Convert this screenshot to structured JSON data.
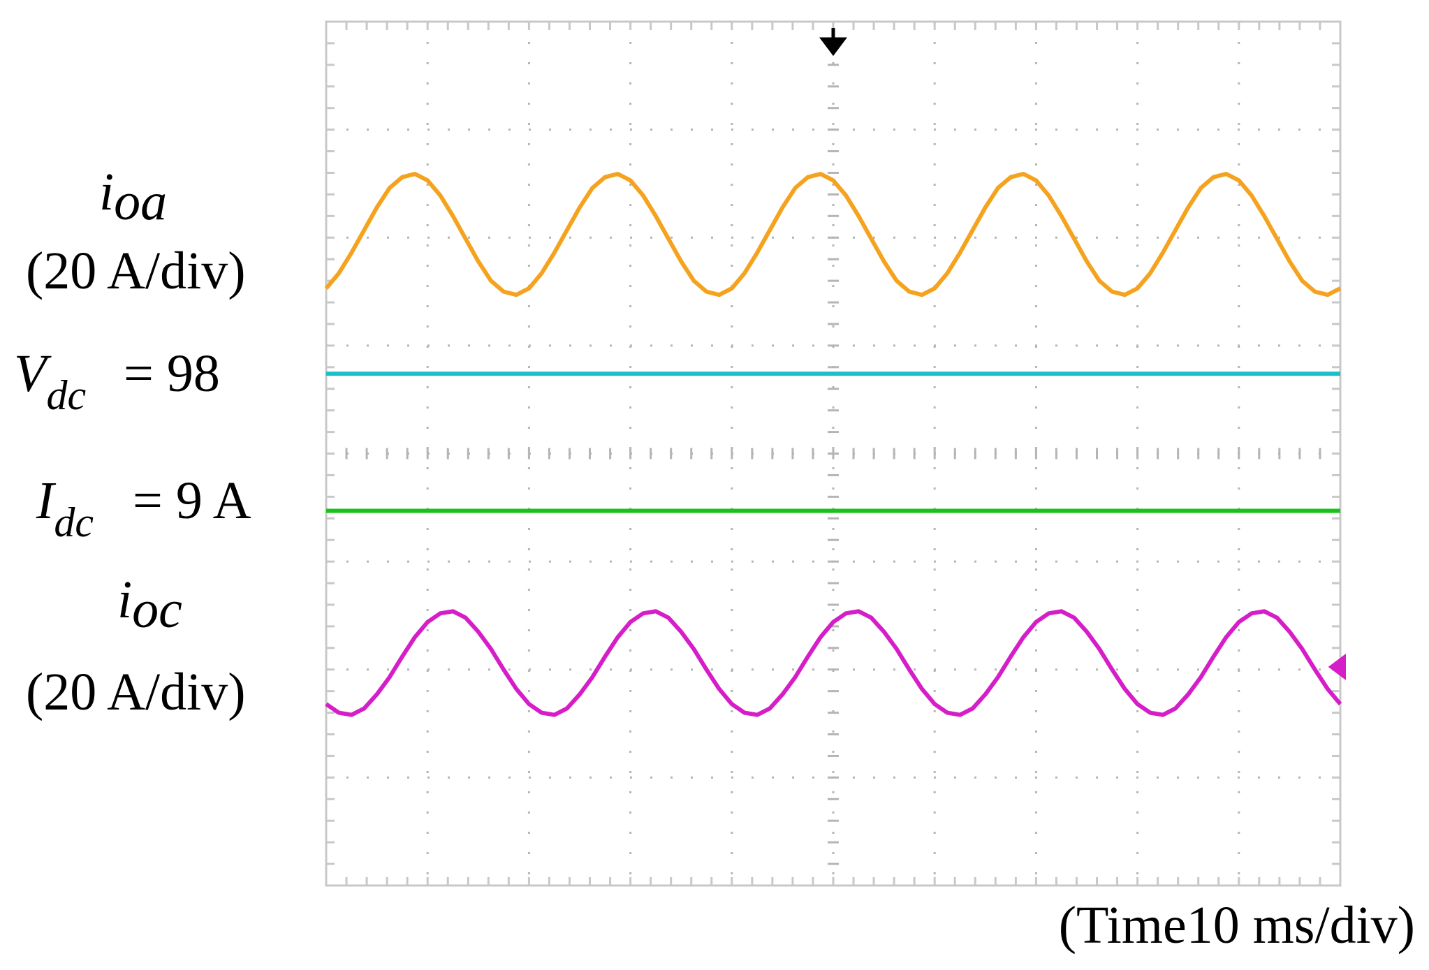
{
  "chart_data": {
    "type": "line",
    "xlabel": "(Time10 ms/div)",
    "annotations": [
      {
        "symbol": "i",
        "subscript": "oa",
        "text": "(20 A/div)"
      },
      {
        "symbol": "V",
        "subscript": "dc",
        "text": "= 98"
      },
      {
        "symbol": "I",
        "subscript": "dc",
        "text": "= 9 A"
      },
      {
        "symbol": "i",
        "subscript": "oc",
        "text": "(20 A/div)"
      }
    ],
    "xlim": [
      0,
      10
    ],
    "ylim": [
      -4,
      4
    ],
    "grid": true,
    "x": [
      0,
      0.125,
      0.25,
      0.375,
      0.5,
      0.625,
      0.75,
      0.875,
      1,
      1.125,
      1.25,
      1.375,
      1.5,
      1.625,
      1.75,
      1.875,
      2,
      2.125,
      2.25,
      2.375,
      2.5,
      2.625,
      2.75,
      2.875,
      3,
      3.125,
      3.25,
      3.375,
      3.5,
      3.625,
      3.75,
      3.875,
      4,
      4.125,
      4.25,
      4.375,
      4.5,
      4.625,
      4.75,
      4.875,
      5,
      5.125,
      5.25,
      5.375,
      5.5,
      5.625,
      5.75,
      5.875,
      6,
      6.125,
      6.25,
      6.375,
      6.5,
      6.625,
      6.75,
      6.875,
      7,
      7.125,
      7.25,
      7.375,
      7.5,
      7.625,
      7.75,
      7.875,
      8,
      8.125,
      8.25,
      8.375,
      8.5,
      8.625,
      8.75,
      8.875,
      9,
      9.125,
      9.25,
      9.375,
      9.5,
      9.625,
      9.75,
      9.875,
      10
    ],
    "series": [
      {
        "color": "#f5a31f",
        "values": [
          1.53,
          1.67,
          1.86,
          2.07,
          2.28,
          2.46,
          2.56,
          2.59,
          2.53,
          2.39,
          2.2,
          1.99,
          1.78,
          1.6,
          1.5,
          1.47,
          1.53,
          1.67,
          1.86,
          2.07,
          2.28,
          2.46,
          2.56,
          2.59,
          2.53,
          2.39,
          2.2,
          1.99,
          1.78,
          1.6,
          1.5,
          1.47,
          1.53,
          1.67,
          1.86,
          2.07,
          2.28,
          2.46,
          2.56,
          2.59,
          2.53,
          2.39,
          2.2,
          1.99,
          1.78,
          1.6,
          1.5,
          1.47,
          1.53,
          1.67,
          1.86,
          2.07,
          2.28,
          2.46,
          2.56,
          2.59,
          2.53,
          2.39,
          2.2,
          1.99,
          1.78,
          1.6,
          1.5,
          1.47,
          1.53,
          1.67,
          1.86,
          2.07,
          2.28,
          2.46,
          2.56,
          2.59,
          2.53,
          2.39,
          2.2,
          1.99,
          1.78,
          1.6,
          1.5,
          1.47,
          1.53
        ]
      },
      {
        "color": "#1bbfc9",
        "values": [
          0.74,
          0.74,
          0.74,
          0.74,
          0.74,
          0.74,
          0.74,
          0.74,
          0.74,
          0.74,
          0.74,
          0.74,
          0.74,
          0.74,
          0.74,
          0.74,
          0.74,
          0.74,
          0.74,
          0.74,
          0.74,
          0.74,
          0.74,
          0.74,
          0.74,
          0.74,
          0.74,
          0.74,
          0.74,
          0.74,
          0.74,
          0.74,
          0.74,
          0.74,
          0.74,
          0.74,
          0.74,
          0.74,
          0.74,
          0.74,
          0.74,
          0.74,
          0.74,
          0.74,
          0.74,
          0.74,
          0.74,
          0.74,
          0.74,
          0.74,
          0.74,
          0.74,
          0.74,
          0.74,
          0.74,
          0.74,
          0.74,
          0.74,
          0.74,
          0.74,
          0.74,
          0.74,
          0.74,
          0.74,
          0.74,
          0.74,
          0.74,
          0.74,
          0.74,
          0.74,
          0.74,
          0.74,
          0.74,
          0.74,
          0.74,
          0.74,
          0.74,
          0.74,
          0.74,
          0.74,
          0.74
        ]
      },
      {
        "color": "#19c21b",
        "values": [
          -0.53,
          -0.53,
          -0.53,
          -0.53,
          -0.53,
          -0.53,
          -0.53,
          -0.53,
          -0.53,
          -0.53,
          -0.53,
          -0.53,
          -0.53,
          -0.53,
          -0.53,
          -0.53,
          -0.53,
          -0.53,
          -0.53,
          -0.53,
          -0.53,
          -0.53,
          -0.53,
          -0.53,
          -0.53,
          -0.53,
          -0.53,
          -0.53,
          -0.53,
          -0.53,
          -0.53,
          -0.53,
          -0.53,
          -0.53,
          -0.53,
          -0.53,
          -0.53,
          -0.53,
          -0.53,
          -0.53,
          -0.53,
          -0.53,
          -0.53,
          -0.53,
          -0.53,
          -0.53,
          -0.53,
          -0.53,
          -0.53,
          -0.53,
          -0.53,
          -0.53,
          -0.53,
          -0.53,
          -0.53,
          -0.53,
          -0.53,
          -0.53,
          -0.53,
          -0.53,
          -0.53,
          -0.53,
          -0.53,
          -0.53,
          -0.53,
          -0.53,
          -0.53,
          -0.53,
          -0.53,
          -0.53,
          -0.53,
          -0.53,
          -0.53,
          -0.53,
          -0.53,
          -0.53,
          -0.53,
          -0.53,
          -0.53,
          -0.53,
          -0.53
        ]
      },
      {
        "color": "#d61ec8",
        "values": [
          -2.32,
          -2.4,
          -2.42,
          -2.36,
          -2.23,
          -2.07,
          -1.88,
          -1.7,
          -1.56,
          -1.48,
          -1.46,
          -1.52,
          -1.65,
          -1.81,
          -2.0,
          -2.18,
          -2.32,
          -2.4,
          -2.42,
          -2.36,
          -2.23,
          -2.07,
          -1.88,
          -1.7,
          -1.56,
          -1.48,
          -1.46,
          -1.52,
          -1.65,
          -1.81,
          -2.0,
          -2.18,
          -2.32,
          -2.4,
          -2.42,
          -2.36,
          -2.23,
          -2.07,
          -1.88,
          -1.7,
          -1.56,
          -1.48,
          -1.46,
          -1.52,
          -1.65,
          -1.81,
          -2.0,
          -2.18,
          -2.32,
          -2.4,
          -2.42,
          -2.36,
          -2.23,
          -2.07,
          -1.88,
          -1.7,
          -1.56,
          -1.48,
          -1.46,
          -1.52,
          -1.65,
          -1.81,
          -2.0,
          -2.18,
          -2.32,
          -2.4,
          -2.42,
          -2.36,
          -2.23,
          -2.07,
          -1.88,
          -1.7,
          -1.56,
          -1.48,
          -1.46,
          -1.52,
          -1.65,
          -1.81,
          -2.0,
          -2.18,
          -2.32
        ]
      }
    ]
  }
}
